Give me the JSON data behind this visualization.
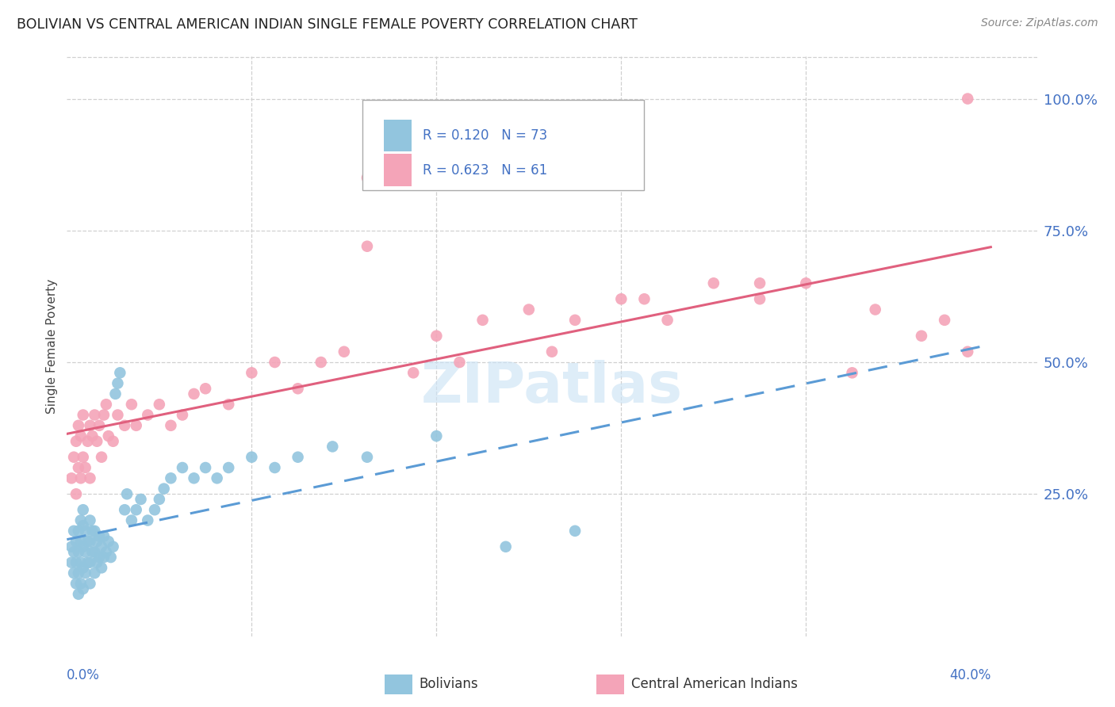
{
  "title": "BOLIVIAN VS CENTRAL AMERICAN INDIAN SINGLE FEMALE POVERTY CORRELATION CHART",
  "source": "Source: ZipAtlas.com",
  "ylabel": "Single Female Poverty",
  "ytick_labels": [
    "25.0%",
    "50.0%",
    "75.0%",
    "100.0%"
  ],
  "ytick_values": [
    0.25,
    0.5,
    0.75,
    1.0
  ],
  "xlim": [
    0.0,
    0.42
  ],
  "ylim": [
    -0.02,
    1.08
  ],
  "blue_color": "#92c5de",
  "pink_color": "#f4a4b8",
  "blue_line_color": "#5b9bd5",
  "pink_line_color": "#e0607e",
  "label_blue": "Bolivians",
  "label_pink": "Central American Indians",
  "watermark": "ZIPatlas",
  "blue_scatter_x": [
    0.002,
    0.002,
    0.003,
    0.003,
    0.003,
    0.004,
    0.004,
    0.004,
    0.005,
    0.005,
    0.005,
    0.005,
    0.006,
    0.006,
    0.006,
    0.006,
    0.007,
    0.007,
    0.007,
    0.007,
    0.007,
    0.008,
    0.008,
    0.008,
    0.009,
    0.009,
    0.01,
    0.01,
    0.01,
    0.01,
    0.011,
    0.011,
    0.012,
    0.012,
    0.012,
    0.013,
    0.013,
    0.014,
    0.014,
    0.015,
    0.015,
    0.016,
    0.016,
    0.017,
    0.018,
    0.019,
    0.02,
    0.021,
    0.022,
    0.023,
    0.025,
    0.026,
    0.028,
    0.03,
    0.032,
    0.035,
    0.038,
    0.04,
    0.042,
    0.045,
    0.05,
    0.055,
    0.06,
    0.065,
    0.07,
    0.08,
    0.09,
    0.1,
    0.115,
    0.13,
    0.16,
    0.19,
    0.22
  ],
  "blue_scatter_y": [
    0.12,
    0.15,
    0.1,
    0.14,
    0.18,
    0.08,
    0.12,
    0.16,
    0.06,
    0.1,
    0.14,
    0.18,
    0.08,
    0.12,
    0.16,
    0.2,
    0.07,
    0.11,
    0.15,
    0.19,
    0.22,
    0.1,
    0.14,
    0.18,
    0.12,
    0.16,
    0.08,
    0.12,
    0.16,
    0.2,
    0.14,
    0.18,
    0.1,
    0.14,
    0.18,
    0.12,
    0.16,
    0.13,
    0.17,
    0.11,
    0.15,
    0.13,
    0.17,
    0.14,
    0.16,
    0.13,
    0.15,
    0.44,
    0.46,
    0.48,
    0.22,
    0.25,
    0.2,
    0.22,
    0.24,
    0.2,
    0.22,
    0.24,
    0.26,
    0.28,
    0.3,
    0.28,
    0.3,
    0.28,
    0.3,
    0.32,
    0.3,
    0.32,
    0.34,
    0.32,
    0.36,
    0.15,
    0.18
  ],
  "pink_scatter_x": [
    0.002,
    0.003,
    0.004,
    0.004,
    0.005,
    0.005,
    0.006,
    0.006,
    0.007,
    0.007,
    0.008,
    0.009,
    0.01,
    0.01,
    0.011,
    0.012,
    0.013,
    0.014,
    0.015,
    0.016,
    0.017,
    0.018,
    0.02,
    0.022,
    0.025,
    0.028,
    0.03,
    0.035,
    0.04,
    0.045,
    0.05,
    0.055,
    0.06,
    0.07,
    0.08,
    0.09,
    0.1,
    0.11,
    0.12,
    0.13,
    0.15,
    0.16,
    0.18,
    0.2,
    0.22,
    0.25,
    0.28,
    0.3,
    0.32,
    0.35,
    0.38,
    0.39,
    0.17,
    0.13,
    0.21,
    0.26,
    0.24,
    0.3,
    0.34,
    0.39,
    0.37
  ],
  "pink_scatter_y": [
    0.28,
    0.32,
    0.25,
    0.35,
    0.3,
    0.38,
    0.28,
    0.36,
    0.32,
    0.4,
    0.3,
    0.35,
    0.28,
    0.38,
    0.36,
    0.4,
    0.35,
    0.38,
    0.32,
    0.4,
    0.42,
    0.36,
    0.35,
    0.4,
    0.38,
    0.42,
    0.38,
    0.4,
    0.42,
    0.38,
    0.4,
    0.44,
    0.45,
    0.42,
    0.48,
    0.5,
    0.45,
    0.5,
    0.52,
    0.72,
    0.48,
    0.55,
    0.58,
    0.6,
    0.58,
    0.62,
    0.65,
    0.62,
    0.65,
    0.6,
    0.58,
    1.0,
    0.5,
    0.85,
    0.52,
    0.58,
    0.62,
    0.65,
    0.48,
    0.52,
    0.55
  ]
}
